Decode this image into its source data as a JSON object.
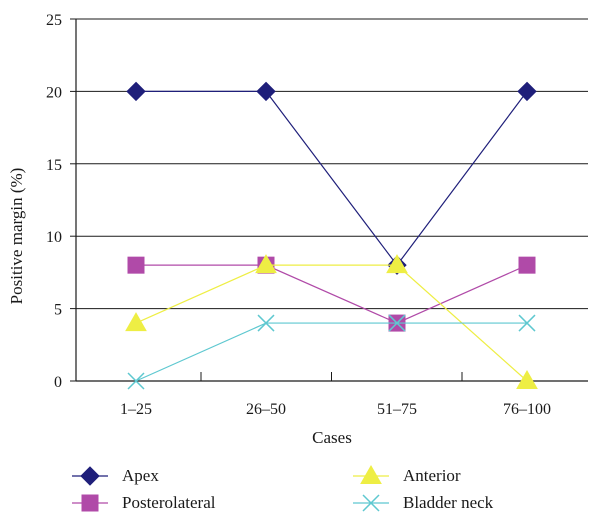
{
  "chart_data": {
    "type": "line",
    "categories": [
      "1–25",
      "26–50",
      "51–75",
      "76–100"
    ],
    "xlabel": "Cases",
    "ylabel": "Positive margin (%)",
    "ylim": [
      0,
      25
    ],
    "yticks": [
      "0",
      "5",
      "10",
      "15",
      "20",
      "25"
    ],
    "grid": true,
    "legend_position": "bottom",
    "series": [
      {
        "name": "Apex",
        "values": [
          20,
          20,
          8,
          20
        ],
        "color": "#1f1f7a",
        "marker": "diamond"
      },
      {
        "name": "Posterolateral",
        "values": [
          8,
          8,
          4,
          8
        ],
        "color": "#b04aa8",
        "marker": "square"
      },
      {
        "name": "Anterior",
        "values": [
          4,
          8,
          8,
          0
        ],
        "color": "#eeee44",
        "marker": "triangle"
      },
      {
        "name": "Bladder neck",
        "values": [
          0,
          4,
          4,
          4
        ],
        "color": "#5ec8d0",
        "marker": "x"
      }
    ]
  }
}
